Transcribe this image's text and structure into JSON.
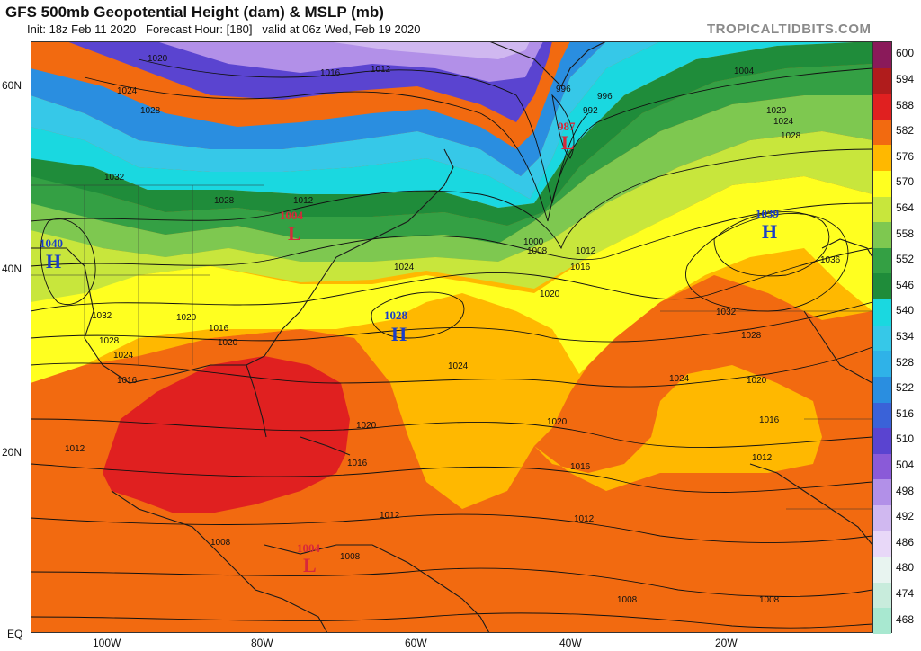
{
  "header": {
    "title": "GFS 500mb Geopotential Height (dam) & MSLP (mb)",
    "subtitle": "Init: 18z Feb 11 2020   Forecast Hour: [180]   valid at 06z Wed, Feb 19 2020",
    "brand": "TROPICALTIDBITS.COM"
  },
  "axes": {
    "latitudes": [
      "60N",
      "40N",
      "20N",
      "EQ"
    ],
    "longitudes": [
      "100W",
      "80W",
      "60W",
      "40W",
      "20W"
    ]
  },
  "colorbar": {
    "levels": [
      "600",
      "594",
      "588",
      "582",
      "576",
      "570",
      "564",
      "558",
      "552",
      "546",
      "540",
      "534",
      "528",
      "522",
      "516",
      "510",
      "504",
      "498",
      "492",
      "486",
      "480",
      "474",
      "468"
    ],
    "colors": [
      "#8a1a5a",
      "#b01c1c",
      "#e02020",
      "#f26a10",
      "#ffb800",
      "#ffff20",
      "#c8e63c",
      "#7ec850",
      "#34a044",
      "#1f8c3a",
      "#1ad8e0",
      "#36c8e8",
      "#2fb2e8",
      "#2a8ee0",
      "#3a62d8",
      "#5a44d0",
      "#8a5ad8",
      "#b290e8",
      "#d0b8f0",
      "#e8d8f8",
      "#e8f4f0",
      "#c8ecdc",
      "#a8e8d0"
    ]
  },
  "systems": [
    {
      "kind": "L",
      "value": "987"
    },
    {
      "kind": "L",
      "value": "1004"
    },
    {
      "kind": "L",
      "value": "1004"
    },
    {
      "kind": "H",
      "value": "1040"
    },
    {
      "kind": "H",
      "value": "1028"
    },
    {
      "kind": "H",
      "value": "1039"
    }
  ],
  "isobar_labels": [
    "1020",
    "1024",
    "1028",
    "1016",
    "1012",
    "1032",
    "1008",
    "1004",
    "1000",
    "996",
    "992",
    "1036"
  ]
}
